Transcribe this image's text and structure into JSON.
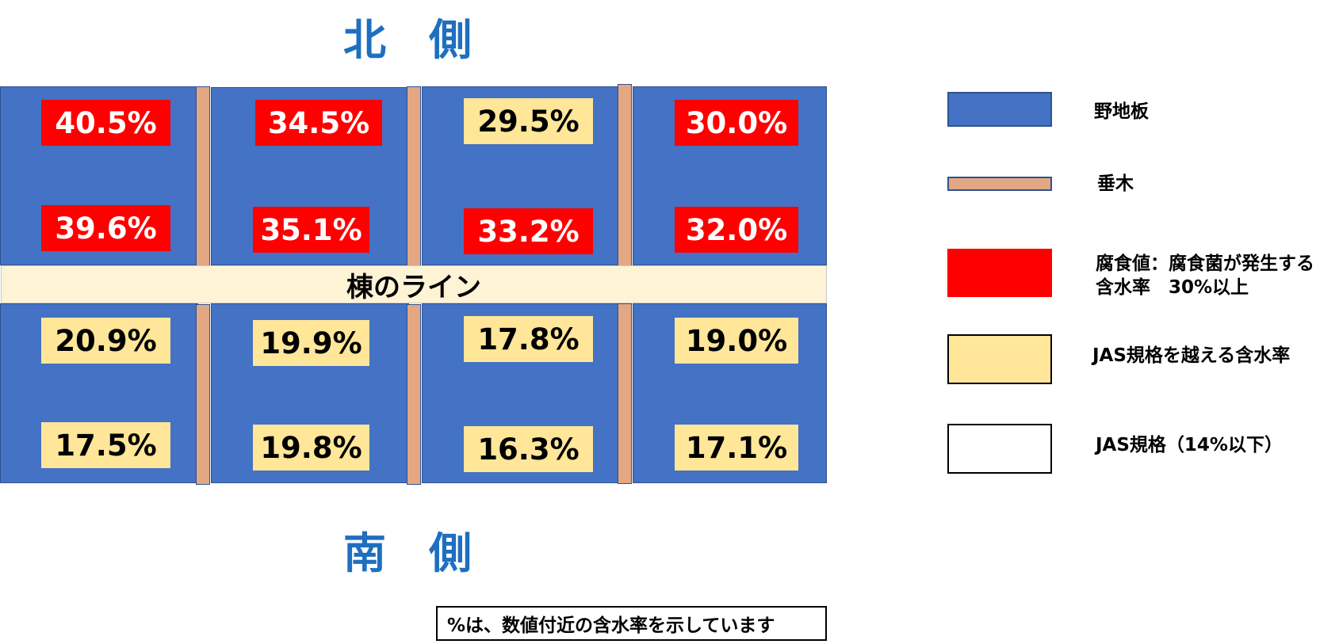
{
  "north_label": "北　側",
  "south_label": "南　側",
  "ridge_label": "棟のライン",
  "note": "%は、数値付近の含水率を示しています",
  "colors": {
    "board": "#4472c4",
    "rafter": "#e3a883",
    "decay": "#ff0000",
    "over_jas": "#ffe699",
    "within_jas": "#ffffff",
    "ridge": "#fff3d6",
    "title": "#1f6fbf"
  },
  "north_row_top": [
    {
      "value": "40.5%",
      "category": "decay"
    },
    {
      "value": "34.5%",
      "category": "decay"
    },
    {
      "value": "29.5%",
      "category": "over"
    },
    {
      "value": "30.0%",
      "category": "decay"
    }
  ],
  "north_row_bottom": [
    {
      "value": "39.6%",
      "category": "decay"
    },
    {
      "value": "35.1%",
      "category": "decay"
    },
    {
      "value": "33.2%",
      "category": "decay"
    },
    {
      "value": "32.0%",
      "category": "decay"
    }
  ],
  "south_row_top": [
    {
      "value": "20.9%",
      "category": "over"
    },
    {
      "value": "19.9%",
      "category": "over"
    },
    {
      "value": "17.8%",
      "category": "over"
    },
    {
      "value": "19.0%",
      "category": "over"
    }
  ],
  "south_row_bottom": [
    {
      "value": "17.5%",
      "category": "over"
    },
    {
      "value": "19.8%",
      "category": "over"
    },
    {
      "value": "16.3%",
      "category": "over"
    },
    {
      "value": "17.1%",
      "category": "over"
    }
  ],
  "legend": [
    {
      "key": "board",
      "text": "野地板"
    },
    {
      "key": "rafter",
      "text": "垂木"
    },
    {
      "key": "decay",
      "text": "腐食値：腐食菌が発生する\n含水率　30%以上"
    },
    {
      "key": "over_jas",
      "text": "JAS規格を越える含水率"
    },
    {
      "key": "within_jas",
      "text": "JAS規格（14%以下）"
    }
  ]
}
